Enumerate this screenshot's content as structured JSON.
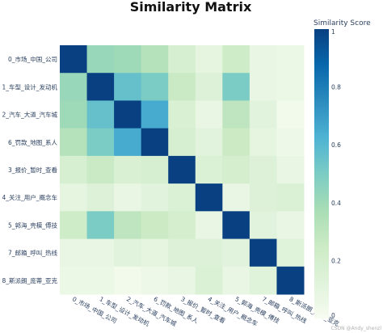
{
  "chart_data": {
    "type": "heatmap",
    "title": "Similarity Matrix",
    "labels": [
      "0_市场_中国_公司",
      "1_车型_设计_发动机",
      "2_汽车_大道_汽车城",
      "6_罚款_地图_系人",
      "3_报价_暂时_查看",
      "4_关注_用户_概念车",
      "5_郭海_壳模_傅技",
      "7_邮箱_呼叫_热线",
      "8_斯派朗_庞蒂_亚克"
    ],
    "values": [
      [
        1.0,
        0.42,
        0.4,
        0.33,
        0.18,
        0.1,
        0.24,
        0.08,
        0.06
      ],
      [
        0.42,
        1.0,
        0.56,
        0.5,
        0.26,
        0.15,
        0.5,
        0.08,
        0.06
      ],
      [
        0.4,
        0.56,
        1.0,
        0.65,
        0.17,
        0.08,
        0.3,
        0.12,
        0.03
      ],
      [
        0.33,
        0.5,
        0.65,
        1.0,
        0.19,
        0.12,
        0.25,
        0.1,
        0.05
      ],
      [
        0.18,
        0.26,
        0.17,
        0.19,
        1.0,
        0.16,
        0.2,
        0.15,
        0.08
      ],
      [
        0.1,
        0.15,
        0.08,
        0.12,
        0.16,
        1.0,
        0.08,
        0.15,
        0.16
      ],
      [
        0.24,
        0.5,
        0.3,
        0.25,
        0.2,
        0.08,
        1.0,
        0.12,
        0.08
      ],
      [
        0.08,
        0.08,
        0.12,
        0.1,
        0.15,
        0.15,
        0.12,
        1.0,
        0.13
      ],
      [
        0.06,
        0.06,
        0.03,
        0.05,
        0.08,
        0.16,
        0.08,
        0.13,
        1.0
      ]
    ],
    "zlim": [
      0,
      1
    ],
    "colorbar": {
      "title": "Similarity Score",
      "ticks": [
        0,
        0.2,
        0.4,
        0.6,
        0.8,
        1
      ],
      "tick_labels": [
        "0",
        "0.2",
        "0.4",
        "0.6",
        "0.8",
        "1"
      ]
    },
    "colorscale": [
      "#f7fcf0",
      "#e0f3db",
      "#ccebc5",
      "#a8ddb5",
      "#7bccc4",
      "#4eb3d3",
      "#2b8cbe",
      "#0868ac",
      "#084081"
    ]
  },
  "watermark": "CSDN @Andy_shenzl"
}
